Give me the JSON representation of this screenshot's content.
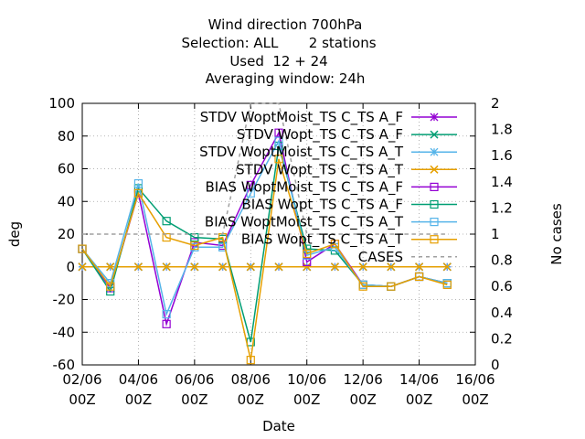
{
  "chart_data": {
    "type": "line",
    "title_lines": [
      "Wind direction 700hPa",
      "Selection: ALL       2 stations",
      "Used  12 + 24",
      "Averaging window: 24h"
    ],
    "xlabel": "Date",
    "ylabel": "deg",
    "y2label": "No cases",
    "x_ticks": [
      {
        "x": 2,
        "l1": "02/06",
        "l2": "00Z"
      },
      {
        "x": 4,
        "l1": "04/06",
        "l2": "00Z"
      },
      {
        "x": 6,
        "l1": "06/06",
        "l2": "00Z"
      },
      {
        "x": 8,
        "l1": "08/06",
        "l2": "00Z"
      },
      {
        "x": 10,
        "l1": "10/06",
        "l2": "00Z"
      },
      {
        "x": 12,
        "l1": "12/06",
        "l2": "00Z"
      },
      {
        "x": 14,
        "l1": "14/06",
        "l2": "00Z"
      },
      {
        "x": 16,
        "l1": "16/06",
        "l2": "00Z"
      }
    ],
    "xlim": [
      2,
      16
    ],
    "ylim": [
      -60,
      100
    ],
    "y_ticks": [
      -60,
      -40,
      -20,
      0,
      20,
      40,
      60,
      80,
      100
    ],
    "y2lim": [
      0,
      2
    ],
    "y2_ticks": [
      "0",
      "0.2",
      "0.4",
      "0.6",
      "0.8",
      "1",
      "1.2",
      "1.4",
      "1.6",
      "1.8",
      "2"
    ],
    "grid": true,
    "legend_position": "top-right",
    "series": [
      {
        "name": "STDV WoptMoist_TS C_TS A_F",
        "color": "#9400d3",
        "marker": "star",
        "dash": false,
        "points": [
          [
            2,
            0
          ],
          [
            3,
            0
          ],
          [
            4,
            0
          ],
          [
            5,
            0
          ],
          [
            6,
            0
          ],
          [
            7,
            0
          ],
          [
            8,
            0
          ],
          [
            9,
            0
          ],
          [
            10,
            0
          ],
          [
            11,
            0
          ],
          [
            12,
            0
          ],
          [
            13,
            0
          ],
          [
            14,
            0
          ],
          [
            15,
            0
          ]
        ]
      },
      {
        "name": "STDV Wopt_TS C_TS A_F",
        "color": "#009e73",
        "marker": "x",
        "dash": false,
        "points": [
          [
            2,
            0
          ],
          [
            3,
            0
          ],
          [
            4,
            0
          ],
          [
            5,
            0
          ],
          [
            6,
            0
          ],
          [
            7,
            0
          ],
          [
            8,
            0
          ],
          [
            9,
            0
          ],
          [
            10,
            0
          ],
          [
            11,
            0
          ],
          [
            12,
            0
          ],
          [
            13,
            0
          ],
          [
            14,
            0
          ],
          [
            15,
            0
          ]
        ]
      },
      {
        "name": "STDV WoptMoist_TS C_TS A_T",
        "color": "#56b4e9",
        "marker": "star",
        "dash": false,
        "points": [
          [
            2,
            0
          ],
          [
            3,
            0
          ],
          [
            4,
            0
          ],
          [
            5,
            0
          ],
          [
            6,
            0
          ],
          [
            7,
            0
          ],
          [
            8,
            0
          ],
          [
            9,
            0
          ],
          [
            10,
            0
          ],
          [
            11,
            0
          ],
          [
            12,
            0
          ],
          [
            13,
            0
          ],
          [
            14,
            0
          ],
          [
            15,
            0
          ]
        ]
      },
      {
        "name": "STDV Wopt_TS C_TS A_T",
        "color": "#e69f00",
        "marker": "x",
        "dash": false,
        "points": [
          [
            2,
            0
          ],
          [
            3,
            0
          ],
          [
            4,
            0
          ],
          [
            5,
            0
          ],
          [
            6,
            0
          ],
          [
            7,
            0
          ],
          [
            8,
            0
          ],
          [
            9,
            0
          ],
          [
            10,
            0
          ],
          [
            11,
            0
          ],
          [
            12,
            0
          ],
          [
            13,
            0
          ],
          [
            14,
            0
          ],
          [
            15,
            0
          ]
        ]
      },
      {
        "name": "BIAS WoptMoist_TS C_TS A_F",
        "color": "#9400d3",
        "marker": "square",
        "dash": false,
        "points": [
          [
            2,
            11
          ],
          [
            3,
            -13
          ],
          [
            4,
            45
          ],
          [
            5,
            -35
          ],
          [
            6,
            15
          ],
          [
            7,
            13
          ],
          [
            8,
            50
          ],
          [
            9,
            82
          ],
          [
            10,
            3
          ],
          [
            11,
            14
          ],
          [
            12,
            -11
          ],
          [
            13,
            -12
          ],
          [
            14,
            -6
          ],
          [
            15,
            -10
          ]
        ]
      },
      {
        "name": "BIAS Wopt_TS C_TS A_F",
        "color": "#009e73",
        "marker": "square",
        "dash": false,
        "points": [
          [
            2,
            11
          ],
          [
            3,
            -15
          ],
          [
            4,
            48
          ],
          [
            5,
            28
          ],
          [
            6,
            18
          ],
          [
            7,
            17
          ],
          [
            8,
            -46
          ],
          [
            9,
            74
          ],
          [
            10,
            11
          ],
          [
            11,
            10
          ],
          [
            12,
            -11
          ],
          [
            13,
            -12
          ],
          [
            14,
            -6
          ],
          [
            15,
            -10
          ]
        ]
      },
      {
        "name": "BIAS WoptMoist_TS C_TS A_T",
        "color": "#56b4e9",
        "marker": "square",
        "dash": false,
        "points": [
          [
            2,
            11
          ],
          [
            3,
            -10
          ],
          [
            4,
            51
          ],
          [
            5,
            -29
          ],
          [
            6,
            12
          ],
          [
            7,
            12
          ],
          [
            8,
            45
          ],
          [
            9,
            77
          ],
          [
            10,
            7
          ],
          [
            11,
            12
          ],
          [
            12,
            -11
          ],
          [
            13,
            -12
          ],
          [
            14,
            -6
          ],
          [
            15,
            -10
          ]
        ]
      },
      {
        "name": "BIAS Wopt_TS C_TS A_T",
        "color": "#e69f00",
        "marker": "square",
        "dash": false,
        "points": [
          [
            2,
            11
          ],
          [
            3,
            -12
          ],
          [
            4,
            45
          ],
          [
            5,
            18
          ],
          [
            6,
            13
          ],
          [
            7,
            18
          ],
          [
            8,
            -57
          ],
          [
            9,
            66
          ],
          [
            10,
            8
          ],
          [
            11,
            14
          ],
          [
            12,
            -12
          ],
          [
            13,
            -12
          ],
          [
            14,
            -6
          ],
          [
            15,
            -11
          ]
        ]
      },
      {
        "name": "CASES",
        "color": "#a0a0a0",
        "marker": "none",
        "dash": true,
        "axis": "y2",
        "points": [
          [
            2,
            1
          ],
          [
            3,
            1
          ],
          [
            4,
            1
          ],
          [
            5,
            1
          ],
          [
            6,
            1
          ],
          [
            7,
            1
          ],
          [
            8,
            2
          ],
          [
            9,
            2
          ],
          [
            10,
            1
          ],
          [
            11,
            1
          ],
          [
            12,
            1
          ],
          [
            13,
            1
          ],
          [
            14,
            1
          ],
          [
            15,
            1
          ]
        ]
      }
    ]
  }
}
